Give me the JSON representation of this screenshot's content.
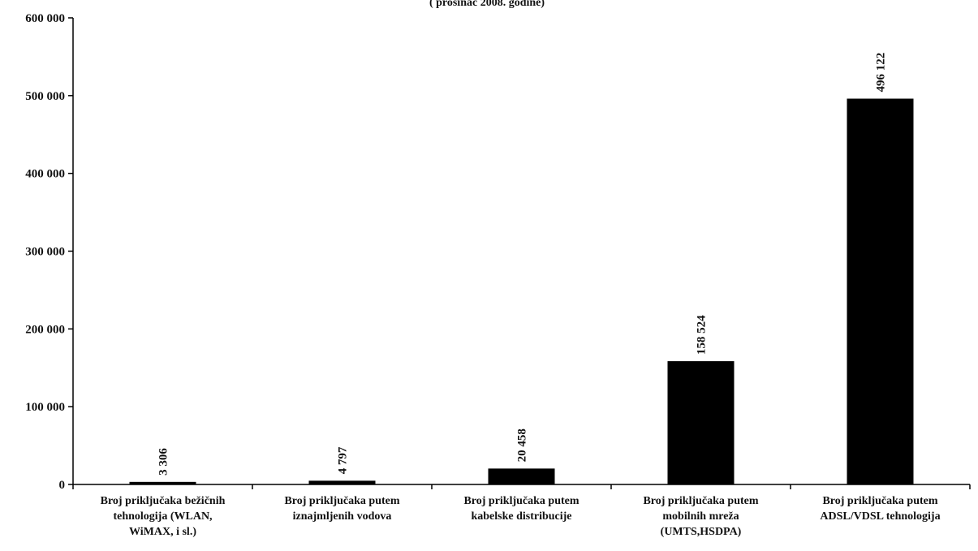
{
  "chart_data": {
    "type": "bar",
    "title": "( prosinac 2008. godine)",
    "categories": [
      [
        "Broj priključaka bežičnih",
        "tehnologija (WLAN,",
        "WiMAX, i sl.)"
      ],
      [
        "Broj priključaka putem",
        "iznajmljenih vodova"
      ],
      [
        "Broj priključaka putem",
        "kabelske distribucije"
      ],
      [
        "Broj priključaka putem",
        "mobilnih mreža",
        "(UMTS,HSDPA)"
      ],
      [
        "Broj priključaka putem",
        "ADSL/VDSL tehnologija"
      ]
    ],
    "values": [
      3306,
      4797,
      20458,
      158524,
      496122
    ],
    "data_labels": [
      "3 306",
      "4 797",
      "20 458",
      "158 524",
      "496 122"
    ],
    "ylim": [
      0,
      600000
    ],
    "yticks": [
      0,
      100000,
      200000,
      300000,
      400000,
      500000,
      600000
    ],
    "ytick_labels": [
      "0",
      "100 000",
      "200 000",
      "300 000",
      "400 000",
      "500 000",
      "600 000"
    ],
    "bar_color": "#000000",
    "grid": false,
    "legend": "none"
  }
}
